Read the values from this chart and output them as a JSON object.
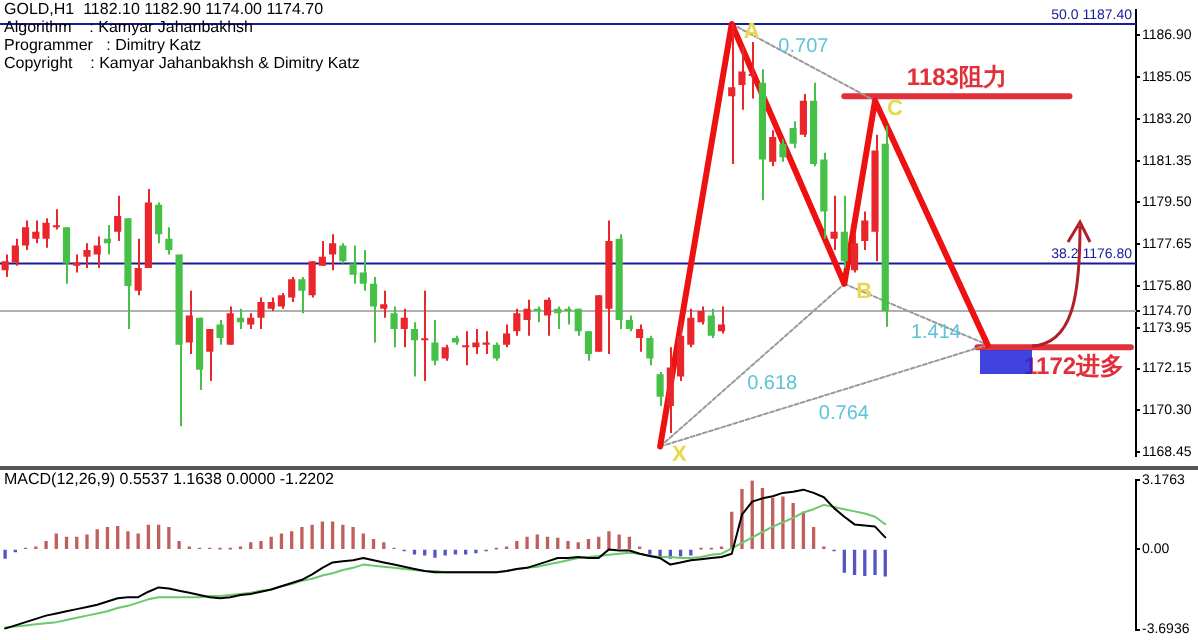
{
  "chart_data": [
    {
      "type": "candlestick",
      "title": "GOLD,H1  1182.10 1182.90 1174.00 1174.70",
      "annotations": [
        "Algorithm    : Kamyar Jahanbakhsh",
        "Programmer   : Dimitry Katz",
        "Copyright    : Kamyar Jahanbakhsh & Dimitry Katz",
        {
          "text": "X",
          "y": 1168.7
        },
        {
          "text": "A",
          "y": 1187.4
        },
        {
          "text": "B",
          "y": 1175.9
        },
        {
          "text": "C",
          "y": 1184.0
        }
      ],
      "categories": [
        null,
        null,
        null,
        null,
        null,
        null,
        null,
        null,
        null,
        null,
        null,
        null,
        null,
        null,
        null,
        null,
        null,
        null,
        null,
        null,
        null,
        null,
        null,
        null,
        null,
        null,
        null,
        null,
        null,
        null,
        null,
        null,
        null,
        null,
        null,
        null,
        null,
        null,
        null,
        null,
        null,
        null,
        null,
        null,
        null,
        null,
        null,
        null,
        null,
        null,
        null,
        null,
        null,
        null,
        null,
        null,
        null,
        null,
        null,
        null,
        null,
        null,
        null,
        null,
        null,
        null,
        null,
        null,
        null,
        null,
        null,
        null,
        null,
        null,
        null,
        null,
        null,
        null,
        null,
        null,
        null,
        null,
        null,
        null,
        null,
        null,
        null,
        null,
        null,
        null,
        null,
        null,
        null,
        null,
        null,
        null,
        null,
        null,
        null,
        null,
        null,
        null,
        null,
        null,
        null,
        null,
        null,
        null,
        null,
        null,
        null
      ],
      "ohlc": [
        [
          1176.5,
          1177.2,
          1176.2,
          1176.9
        ],
        [
          1176.85,
          1177.9,
          1176.7,
          1177.6
        ],
        [
          1177.6,
          1178.7,
          1177.4,
          1178.4
        ],
        [
          1177.9,
          1178.7,
          1177.7,
          1178.2
        ],
        [
          1177.9,
          1178.8,
          1177.5,
          1178.6
        ],
        [
          1178.4,
          1179.2,
          1178.3,
          1178.4
        ],
        [
          1178.4,
          1178.4,
          1175.9,
          1176.8
        ],
        [
          1176.7,
          1177.2,
          1176.4,
          1176.85
        ],
        [
          1177.1,
          1177.7,
          1176.6,
          1177.4
        ],
        [
          1177.2,
          1178.0,
          1176.6,
          1177.6
        ],
        [
          1177.9,
          1178.5,
          1177.2,
          1177.7
        ],
        [
          1178.2,
          1179.8,
          1177.8,
          1178.9
        ],
        [
          1178.8,
          1178.8,
          1173.9,
          1175.8
        ],
        [
          1175.6,
          1177.9,
          1175.4,
          1176.6
        ],
        [
          1176.6,
          1180.1,
          1176.6,
          1179.5
        ],
        [
          1179.4,
          1179.5,
          1177.7,
          1178.1
        ],
        [
          1177.9,
          1178.4,
          1177.2,
          1177.4
        ],
        [
          1177.2,
          1177.2,
          1169.6,
          1173.2
        ],
        [
          1173.3,
          1175.6,
          1172.8,
          1174.5
        ],
        [
          1174.4,
          1174.4,
          1171.2,
          1172.1
        ],
        [
          1172.9,
          1173.9,
          1171.6,
          1173.9
        ],
        [
          1174.1,
          1174.3,
          1173.2,
          1173.5
        ],
        [
          1173.2,
          1174.9,
          1173.2,
          1174.6
        ],
        [
          1174.4,
          1174.8,
          1173.9,
          1174.2
        ],
        [
          1174.1,
          1174.6,
          1173.9,
          1174.4
        ],
        [
          1174.4,
          1175.3,
          1173.9,
          1175.1
        ],
        [
          1174.8,
          1175.3,
          1174.7,
          1175.1
        ],
        [
          1174.9,
          1175.5,
          1174.8,
          1175.4
        ],
        [
          1175.3,
          1176.2,
          1175.1,
          1176.1
        ],
        [
          1176.1,
          1176.2,
          1174.6,
          1175.6
        ],
        [
          1175.4,
          1176.9,
          1175.3,
          1176.9
        ],
        [
          1176.7,
          1177.8,
          1176.7,
          1177.1
        ],
        [
          1177.2,
          1178.1,
          1176.5,
          1177.7
        ],
        [
          1177.6,
          1177.7,
          1176.8,
          1176.9
        ],
        [
          1176.8,
          1177.6,
          1175.9,
          1176.3
        ],
        [
          1176.4,
          1177.4,
          1175.6,
          1175.9
        ],
        [
          1175.9,
          1176.2,
          1173.3,
          1174.9
        ],
        [
          1174.8,
          1175.6,
          1174.4,
          1175.0
        ],
        [
          1174.6,
          1174.9,
          1173.1,
          1173.9
        ],
        [
          1173.9,
          1174.8,
          1173.1,
          1174.4
        ],
        [
          1173.9,
          1174.2,
          1171.8,
          1173.4
        ],
        [
          1173.4,
          1175.6,
          1171.6,
          1173.4
        ],
        [
          1173.3,
          1174.3,
          1172.3,
          1172.5
        ],
        [
          1172.6,
          1173.2,
          1172.5,
          1173.1
        ],
        [
          1173.5,
          1173.6,
          1173.2,
          1173.3
        ],
        [
          1173.1,
          1173.8,
          1172.3,
          1173.1
        ],
        [
          1173.1,
          1173.9,
          1172.8,
          1173.3
        ],
        [
          1173.2,
          1173.8,
          1172.8,
          1173.3
        ],
        [
          1173.2,
          1173.3,
          1172.5,
          1172.6
        ],
        [
          1173.2,
          1174.1,
          1173.1,
          1173.7
        ],
        [
          1173.8,
          1174.8,
          1173.6,
          1174.6
        ],
        [
          1174.3,
          1175.2,
          1173.6,
          1174.8
        ],
        [
          1174.8,
          1174.9,
          1174.2,
          1174.7
        ],
        [
          1174.5,
          1175.3,
          1173.6,
          1175.2
        ],
        [
          1174.8,
          1174.9,
          1173.9,
          1174.6
        ],
        [
          1174.8,
          1174.9,
          1174.1,
          1174.7
        ],
        [
          1174.8,
          1174.8,
          1173.6,
          1173.8
        ],
        [
          1173.8,
          1173.8,
          1172.5,
          1172.8
        ],
        [
          1172.9,
          1175.4,
          1172.9,
          1175.4
        ],
        [
          1174.8,
          1178.7,
          1172.8,
          1177.8
        ],
        [
          1177.9,
          1178.1,
          1173.9,
          1174.3
        ],
        [
          1174.3,
          1174.5,
          1173.8,
          1173.9
        ],
        [
          1173.5,
          1174.1,
          1172.9,
          1173.9
        ],
        [
          1173.5,
          1173.6,
          1172.3,
          1172.6
        ],
        [
          1171.9,
          1172.0,
          1170.5,
          1170.9
        ],
        [
          1170.5,
          1173.1,
          1169.3,
          1172.2
        ],
        [
          1171.8,
          1174.2,
          1171.6,
          1173.6
        ],
        [
          1173.2,
          1174.8,
          1173.1,
          1174.4
        ],
        [
          1174.2,
          1174.9,
          1174.1,
          1174.7
        ],
        [
          1174.5,
          1174.8,
          1173.5,
          1173.6
        ],
        [
          1173.8,
          1174.9,
          1173.7,
          1174.1
        ],
        [
          1184.2,
          1187.4,
          1181.2,
          1184.6
        ],
        [
          1184.7,
          1186.4,
          1183.6,
          1185.3
        ],
        [
          1185.1,
          1186.6,
          1184.1,
          1185.1
        ],
        [
          1184.8,
          1185.4,
          1179.6,
          1181.4
        ],
        [
          1181.3,
          1182.7,
          1181.1,
          1182.4
        ],
        [
          1182.1,
          1182.3,
          1181.3,
          1181.5
        ],
        [
          1182.8,
          1183.1,
          1181.9,
          1182.1
        ],
        [
          1182.5,
          1184.3,
          1182.4,
          1184.0
        ],
        [
          1184.0,
          1184.8,
          1181.1,
          1181.2
        ],
        [
          1181.4,
          1181.7,
          1177.9,
          1179.1
        ],
        [
          1177.9,
          1179.8,
          1177.4,
          1178.2
        ],
        [
          1178.2,
          1179.8,
          1176.6,
          1176.9
        ],
        [
          1176.5,
          1178.1,
          1176.4,
          1177.7
        ],
        [
          1177.8,
          1179.1,
          1177.4,
          1178.7
        ],
        [
          1178.2,
          1182.5,
          1176.9,
          1181.8
        ],
        [
          1182.1,
          1182.9,
          1174.0,
          1174.7
        ],
        null,
        null,
        null,
        null,
        null,
        null,
        null,
        null,
        null,
        null,
        null,
        null,
        null,
        null,
        null,
        null,
        null,
        null,
        null,
        null,
        null,
        null,
        null,
        null
      ],
      "colors": [
        "#e8262b",
        "#e8262b",
        "#e8262b",
        "#e8262b",
        "#e8262b",
        "#e8262b",
        "#46c046",
        "#e8262b",
        "#e8262b",
        "#e8262b",
        "#46c046",
        "#e8262b",
        "#46c046",
        "#e8262b",
        "#e8262b",
        "#46c046",
        "#46c046",
        "#46c046",
        "#e8262b",
        "#46c046",
        "#e8262b",
        "#46c046",
        "#e8262b",
        "#46c046",
        "#e8262b",
        "#e8262b",
        "#e8262b",
        "#e8262b",
        "#e8262b",
        "#46c046",
        "#e8262b",
        "#e8262b",
        "#e8262b",
        "#46c046",
        "#46c046",
        "#46c046",
        "#46c046",
        "#e8262b",
        "#46c046",
        "#e8262b",
        "#46c046",
        "#e8262b",
        "#46c046",
        "#e8262b",
        "#46c046",
        "#e8262b",
        "#e8262b",
        "#e8262b",
        "#46c046",
        "#e8262b",
        "#e8262b",
        "#e8262b",
        "#46c046",
        "#e8262b",
        "#46c046",
        "#46c046",
        "#46c046",
        "#46c046",
        "#e8262b",
        "#e8262b",
        "#46c046",
        "#46c046",
        "#e8262b",
        "#46c046",
        "#46c046",
        "#e8262b",
        "#e8262b",
        "#e8262b",
        "#e8262b",
        "#46c046",
        "#e8262b",
        "#e8262b",
        "#e8262b",
        "#e8262b",
        "#46c046",
        "#e8262b",
        "#46c046",
        "#46c046",
        "#e8262b",
        "#46c046",
        "#46c046",
        "#e8262b",
        "#46c046",
        "#e8262b",
        "#e8262b",
        "#e8262b",
        "#46c046",
        null,
        null,
        null,
        null,
        null,
        null,
        null,
        null,
        null,
        null,
        null,
        null,
        null,
        null,
        null,
        null,
        null,
        null,
        null,
        null,
        null,
        null,
        null,
        null
      ],
      "series": [
        {
          "type": "line",
          "color": "#ee1111",
          "line_style": "solid",
          "values": [
            null,
            null,
            null,
            null,
            null,
            null,
            null,
            null,
            null,
            null,
            null,
            null,
            null,
            null,
            null,
            null,
            null,
            null,
            null,
            null,
            null,
            null,
            null,
            null,
            null,
            null,
            null,
            null,
            null,
            null,
            null,
            null,
            null,
            null,
            null,
            null,
            null,
            null,
            null,
            null,
            null,
            null,
            null,
            null,
            null,
            null,
            null,
            null,
            null,
            null,
            null,
            null,
            null,
            null,
            null,
            null,
            null,
            null,
            null,
            null,
            null,
            null,
            null,
            null,
            1168.7,
            null,
            null,
            null,
            null,
            null,
            null,
            1187.4,
            null,
            null,
            null,
            null,
            null,
            null,
            null,
            null,
            null,
            null,
            1175.9,
            null,
            null,
            1184.0,
            null,
            null,
            null,
            null,
            null,
            null,
            null,
            null,
            null,
            null,
            1173.2,
            null,
            null,
            null,
            null,
            null,
            null,
            null,
            null,
            null,
            null,
            null,
            null,
            null,
            null
          ]
        },
        {
          "type": "line",
          "name": "0.618",
          "color": "#9a9a9a",
          "line_style": "dotted",
          "values": [
            null,
            null,
            null,
            null,
            null,
            null,
            null,
            null,
            null,
            null,
            null,
            null,
            null,
            null,
            null,
            null,
            null,
            null,
            null,
            null,
            null,
            null,
            null,
            null,
            null,
            null,
            null,
            null,
            null,
            null,
            null,
            null,
            null,
            null,
            null,
            null,
            null,
            null,
            null,
            null,
            null,
            null,
            null,
            null,
            null,
            null,
            null,
            null,
            null,
            null,
            null,
            null,
            null,
            null,
            null,
            null,
            null,
            null,
            null,
            null,
            null,
            null,
            null,
            null,
            1168.7,
            null,
            null,
            null,
            null,
            null,
            null,
            null,
            null,
            null,
            null,
            null,
            null,
            null,
            null,
            null,
            null,
            null,
            1175.9,
            null,
            null,
            null,
            null,
            null,
            null,
            null,
            null,
            null,
            null,
            null,
            null,
            null,
            null,
            null,
            null,
            null,
            null,
            null,
            null,
            null,
            null,
            null,
            null,
            null,
            null,
            null,
            null
          ]
        },
        {
          "type": "line",
          "name": "1.414",
          "color": "#9a9a9a",
          "line_style": "dotted",
          "values": [
            null,
            null,
            null,
            null,
            null,
            null,
            null,
            null,
            null,
            null,
            null,
            null,
            null,
            null,
            null,
            null,
            null,
            null,
            null,
            null,
            null,
            null,
            null,
            null,
            null,
            null,
            null,
            null,
            null,
            null,
            null,
            null,
            null,
            null,
            null,
            null,
            null,
            null,
            null,
            null,
            null,
            null,
            null,
            null,
            null,
            null,
            null,
            null,
            null,
            null,
            null,
            null,
            null,
            null,
            null,
            null,
            null,
            null,
            null,
            null,
            null,
            null,
            null,
            null,
            null,
            null,
            null,
            null,
            null,
            null,
            null,
            null,
            null,
            null,
            null,
            null,
            null,
            null,
            null,
            null,
            null,
            null,
            1175.9,
            null,
            null,
            null,
            null,
            null,
            null,
            null,
            null,
            null,
            null,
            null,
            null,
            null,
            1173.2,
            null,
            null,
            null,
            null,
            null,
            null,
            null,
            null,
            null,
            null,
            null,
            null,
            null,
            null
          ]
        },
        {
          "type": "line",
          "name": "0.707",
          "color": "#9a9a9a",
          "line_style": "dotted",
          "values": [
            null,
            null,
            null,
            null,
            null,
            null,
            null,
            null,
            null,
            null,
            null,
            null,
            null,
            null,
            null,
            null,
            null,
            null,
            null,
            null,
            null,
            null,
            null,
            null,
            null,
            null,
            null,
            null,
            null,
            null,
            null,
            null,
            null,
            null,
            null,
            null,
            null,
            null,
            null,
            null,
            null,
            null,
            null,
            null,
            null,
            null,
            null,
            null,
            null,
            null,
            null,
            null,
            null,
            null,
            null,
            null,
            null,
            null,
            null,
            null,
            null,
            null,
            null,
            null,
            null,
            null,
            null,
            null,
            null,
            null,
            null,
            1187.4,
            null,
            null,
            null,
            null,
            null,
            null,
            null,
            null,
            null,
            null,
            null,
            null,
            null,
            1184.0,
            null,
            null,
            null,
            null,
            null,
            null,
            null,
            null,
            null,
            null,
            null,
            null,
            null,
            null,
            null,
            null,
            null,
            null,
            null,
            null,
            null,
            null,
            null,
            null,
            null
          ]
        },
        {
          "type": "line",
          "name": "0.764",
          "color": "#9a9a9a",
          "line_style": "dotted",
          "values": [
            null,
            null,
            null,
            null,
            null,
            null,
            null,
            null,
            null,
            null,
            null,
            null,
            null,
            null,
            null,
            null,
            null,
            null,
            null,
            null,
            null,
            null,
            null,
            null,
            null,
            null,
            null,
            null,
            null,
            null,
            null,
            null,
            null,
            null,
            null,
            null,
            null,
            null,
            null,
            null,
            null,
            null,
            null,
            null,
            null,
            null,
            null,
            null,
            null,
            null,
            null,
            null,
            null,
            null,
            null,
            null,
            null,
            null,
            null,
            null,
            null,
            null,
            null,
            null,
            1168.7,
            null,
            null,
            null,
            null,
            null,
            null,
            null,
            null,
            null,
            null,
            null,
            null,
            null,
            null,
            null,
            null,
            null,
            null,
            null,
            null,
            null,
            null,
            null,
            null,
            null,
            null,
            null,
            null,
            null,
            null,
            null,
            1173.2,
            null,
            null,
            null,
            null,
            null,
            null,
            null,
            null,
            null,
            null,
            null,
            null,
            null,
            null
          ]
        },
        {
          "type": "line",
          "name": "1183阻力",
          "color": "#e0303a",
          "line_style": "solid",
          "values": [
            null,
            null,
            null,
            null,
            null,
            null,
            null,
            null,
            null,
            null,
            null,
            null,
            null,
            null,
            null,
            null,
            null,
            null,
            null,
            null,
            null,
            null,
            null,
            null,
            null,
            null,
            null,
            null,
            null,
            null,
            null,
            null,
            null,
            null,
            null,
            null,
            null,
            null,
            null,
            null,
            null,
            null,
            null,
            null,
            null,
            null,
            null,
            null,
            null,
            null,
            null,
            null,
            null,
            null,
            null,
            null,
            null,
            null,
            null,
            null,
            null,
            null,
            null,
            null,
            null,
            null,
            null,
            null,
            null,
            null,
            null,
            null,
            null,
            null,
            null,
            null,
            null,
            null,
            null,
            null,
            null,
            null,
            1184.2,
            1184.2,
            1184.2,
            1184.2,
            1184.2,
            1184.2,
            1184.2,
            1184.2,
            1184.2,
            1184.2,
            1184.2,
            1184.2,
            1184.2,
            1184.2,
            1184.2,
            1184.2,
            1184.2,
            1184.2,
            1184.2,
            1184.2,
            1184.2,
            1184.2,
            1184.2,
            null,
            null,
            null,
            null,
            null,
            null
          ]
        },
        {
          "type": "line",
          "name": "1172进多",
          "color": "#e0303a",
          "line_style": "solid",
          "values": [
            null,
            null,
            null,
            null,
            null,
            null,
            null,
            null,
            null,
            null,
            null,
            null,
            null,
            null,
            null,
            null,
            null,
            null,
            null,
            null,
            null,
            null,
            null,
            null,
            null,
            null,
            null,
            null,
            null,
            null,
            null,
            null,
            null,
            null,
            null,
            null,
            null,
            null,
            null,
            null,
            null,
            null,
            null,
            null,
            null,
            null,
            null,
            null,
            null,
            null,
            null,
            null,
            null,
            null,
            null,
            null,
            null,
            null,
            null,
            null,
            null,
            null,
            null,
            null,
            null,
            null,
            null,
            null,
            null,
            null,
            null,
            null,
            null,
            null,
            null,
            null,
            null,
            null,
            null,
            null,
            null,
            null,
            null,
            null,
            null,
            null,
            null,
            null,
            null,
            null,
            null,
            null,
            null,
            null,
            null,
            1173.1,
            1173.1,
            1173.1,
            1173.1,
            1173.1,
            1173.1,
            1173.1,
            1173.1,
            1173.1,
            1173.1,
            1173.1,
            1173.1,
            1173.1,
            1173.1,
            1173.1,
            1173.1
          ]
        }
      ],
      "ref_lines": [
        {
          "axis": "y",
          "value": 1187.4,
          "label": "50.0 1187.40",
          "color": "#1a1a9c",
          "line_style": "solid"
        },
        {
          "axis": "y",
          "value": 1176.8,
          "label": "38.2 1176.80",
          "color": "#1a1a9c",
          "line_style": "solid"
        },
        {
          "axis": "y",
          "value": 1174.7,
          "color": "#b0b0b0",
          "line_style": "solid"
        }
      ],
      "ylim": [
        1168.3,
        1188.0
      ],
      "yticks": [
        1168.45,
        {
          "value": 1170.3,
          "label": "1170.30"
        },
        1172.15,
        1173.95,
        {
          "value": 1174.7,
          "label": "1174.70"
        },
        {
          "value": 1175.8,
          "label": "1175.80"
        },
        1177.65,
        {
          "value": 1179.5,
          "label": "1179.50"
        },
        1181.35,
        {
          "value": 1183.2,
          "label": "1183.20"
        },
        1185.05,
        {
          "value": 1186.9,
          "label": "1186.90"
        }
      ],
      "tick_labels": "y",
      "legend": false
    },
    {
      "type": "bar",
      "title": "MACD(12,26,9) 0.5537 1.1638 0.0000 -1.2202",
      "categories": [
        null,
        null,
        null,
        null,
        null,
        null,
        null,
        null,
        null,
        null,
        null,
        null,
        null,
        null,
        null,
        null,
        null,
        null,
        null,
        null,
        null,
        null,
        null,
        null,
        null,
        null,
        null,
        null,
        null,
        null,
        null,
        null,
        null,
        null,
        null,
        null,
        null,
        null,
        null,
        null,
        null,
        null,
        null,
        null,
        null,
        null,
        null,
        null,
        null,
        null,
        null,
        null,
        null,
        null,
        null,
        null,
        null,
        null,
        null,
        null,
        null,
        null,
        null,
        null,
        null,
        null,
        null,
        null,
        null,
        null,
        null,
        null,
        null,
        null,
        null,
        null,
        null,
        null,
        null,
        null,
        null,
        null,
        null,
        null,
        null,
        null,
        null,
        null,
        null,
        null,
        null,
        null,
        null,
        null,
        null,
        null,
        null,
        null,
        null,
        null,
        null,
        null,
        null,
        null,
        null,
        null,
        null,
        null,
        null,
        null,
        null
      ],
      "series": [
        {
          "type": "bar",
          "values": [
            -0.4,
            -0.1,
            0.05,
            0.1,
            0.35,
            0.7,
            0.55,
            0.55,
            0.65,
            0.9,
            1.0,
            1.05,
            0.8,
            0.7,
            1.1,
            1.1,
            1.0,
            0.35,
            0.1,
            0.05,
            0.05,
            0.02,
            0.02,
            0.1,
            0.3,
            0.35,
            0.55,
            0.7,
            0.8,
            1.0,
            1.1,
            1.25,
            1.25,
            1.1,
            1.0,
            0.7,
            0.45,
            0.3,
            0.05,
            -0.05,
            -0.2,
            -0.25,
            -0.35,
            -0.25,
            -0.2,
            -0.2,
            -0.15,
            -0.05,
            0.02,
            0.1,
            0.35,
            0.55,
            0.65,
            0.55,
            0.5,
            0.35,
            0.3,
            0.45,
            0.55,
            0.8,
            0.65,
            0.55,
            0.1,
            -0.2,
            -0.4,
            -0.4,
            -0.3,
            -0.25,
            0.02,
            0.02,
            0.1,
            1.7,
            2.75,
            3.15,
            2.8,
            2.35,
            2.4,
            2.1,
            1.7,
            1.0,
            0.1,
            -0.05,
            -1.05,
            -1.15,
            -1.2,
            -1.15,
            -1.22,
            null,
            null,
            null,
            null,
            null,
            null,
            null,
            null,
            null,
            null,
            null,
            null,
            null,
            null,
            null,
            null,
            null,
            null,
            null,
            null,
            null,
            null,
            null,
            null
          ],
          "colors": [
            "#5555c0",
            "#5555c0",
            "#c0605d",
            "#c0605d",
            "#c0605d",
            "#c0605d",
            "#c0605d",
            "#c0605d",
            "#c0605d",
            "#c0605d",
            "#c0605d",
            "#c0605d",
            "#c0605d",
            "#c0605d",
            "#c0605d",
            "#c0605d",
            "#c0605d",
            "#c0605d",
            "#c0605d",
            "#c0605d",
            "#c0605d",
            "#c0605d",
            "#c0605d",
            "#c0605d",
            "#c0605d",
            "#c0605d",
            "#c0605d",
            "#c0605d",
            "#c0605d",
            "#c0605d",
            "#c0605d",
            "#c0605d",
            "#c0605d",
            "#c0605d",
            "#c0605d",
            "#c0605d",
            "#c0605d",
            "#c0605d",
            "#c0605d",
            "#5555c0",
            "#5555c0",
            "#5555c0",
            "#5555c0",
            "#5555c0",
            "#5555c0",
            "#5555c0",
            "#5555c0",
            "#5555c0",
            "#c0605d",
            "#c0605d",
            "#c0605d",
            "#c0605d",
            "#c0605d",
            "#c0605d",
            "#c0605d",
            "#c0605d",
            "#c0605d",
            "#c0605d",
            "#c0605d",
            "#c0605d",
            "#c0605d",
            "#c0605d",
            "#c0605d",
            "#5555c0",
            "#5555c0",
            "#5555c0",
            "#5555c0",
            "#5555c0",
            "#c0605d",
            "#c0605d",
            "#c0605d",
            "#c0605d",
            "#c0605d",
            "#c0605d",
            "#c0605d",
            "#c0605d",
            "#c0605d",
            "#c0605d",
            "#c0605d",
            "#c0605d",
            "#c0605d",
            "#5555c0",
            "#5555c0",
            "#5555c0",
            "#5555c0",
            "#5555c0",
            "#5555c0",
            null,
            null,
            null,
            null,
            null,
            null,
            null,
            null,
            null,
            null,
            null,
            null,
            null,
            null,
            null,
            null,
            null,
            null,
            null,
            null,
            null,
            null,
            null,
            null
          ]
        },
        {
          "type": "line",
          "color": "#000000",
          "values": [
            -3.65,
            -3.5,
            -3.35,
            -3.2,
            -3.05,
            -2.95,
            -2.85,
            -2.75,
            -2.65,
            -2.55,
            -2.4,
            -2.25,
            -2.2,
            -2.2,
            -1.95,
            -1.75,
            -1.8,
            -1.9,
            -2.0,
            -2.1,
            -2.2,
            -2.25,
            -2.2,
            -2.1,
            -2.05,
            -1.95,
            -1.85,
            -1.7,
            -1.55,
            -1.4,
            -1.15,
            -0.85,
            -0.6,
            -0.55,
            -0.5,
            -0.4,
            -0.5,
            -0.6,
            -0.7,
            -0.8,
            -0.9,
            -1.0,
            -1.05,
            -1.05,
            -1.05,
            -1.05,
            -1.05,
            -1.05,
            -1.05,
            -1.0,
            -0.9,
            -0.85,
            -0.7,
            -0.55,
            -0.4,
            -0.4,
            -0.35,
            -0.4,
            -0.4,
            0,
            -0.05,
            -0.05,
            -0.2,
            -0.3,
            -0.4,
            -0.7,
            -0.6,
            -0.5,
            -0.45,
            -0.4,
            -0.35,
            -0.2,
            1.6,
            2.2,
            2.35,
            2.45,
            2.6,
            2.65,
            2.75,
            2.6,
            2.4,
            1.9,
            1.5,
            1.15,
            1.1,
            1.05,
            0.55,
            null,
            null,
            null,
            null,
            null,
            null,
            null,
            null,
            null,
            null,
            null,
            null,
            null,
            null,
            null,
            null,
            null,
            null,
            null,
            null,
            null,
            null,
            null,
            null
          ]
        },
        {
          "type": "line",
          "color": "#6cc86c",
          "values": [
            -3.6,
            -3.55,
            -3.5,
            -3.45,
            -3.4,
            -3.35,
            -3.25,
            -3.15,
            -3.05,
            -2.95,
            -2.85,
            -2.7,
            -2.6,
            -2.45,
            -2.3,
            -2.2,
            -2.2,
            -2.2,
            -2.2,
            -2.2,
            -2.15,
            -2.15,
            -2.1,
            -2.05,
            -2.0,
            -1.9,
            -1.85,
            -1.7,
            -1.6,
            -1.45,
            -1.35,
            -1.2,
            -1.1,
            -0.95,
            -0.85,
            -0.7,
            -0.75,
            -0.8,
            -0.85,
            -0.9,
            -0.95,
            -1.0,
            -1.0,
            -1.05,
            -1.05,
            -1.05,
            -1.05,
            -1.05,
            -1.05,
            -1.0,
            -0.9,
            -0.85,
            -0.8,
            -0.7,
            -0.6,
            -0.5,
            -0.4,
            -0.35,
            -0.3,
            -0.25,
            -0.2,
            -0.15,
            -0.2,
            -0.3,
            -0.35,
            -0.35,
            -0.4,
            -0.4,
            -0.35,
            -0.25,
            -0.2,
            0.05,
            0.3,
            0.55,
            0.8,
            1.05,
            1.25,
            1.45,
            1.7,
            1.85,
            2.05,
            1.95,
            1.85,
            1.75,
            1.65,
            1.5,
            1.16,
            null,
            null,
            null,
            null,
            null,
            null,
            null,
            null,
            null,
            null,
            null,
            null,
            null,
            null,
            null,
            null,
            null,
            null,
            null,
            null,
            null,
            null,
            null,
            null
          ]
        }
      ],
      "ylim": [
        -3.6936,
        3.1763
      ],
      "yticks": [
        3.1763,
        {
          "value": 0,
          "label": "0.00"
        },
        -3.6936
      ],
      "tick_labels": "y",
      "legend": false
    }
  ]
}
